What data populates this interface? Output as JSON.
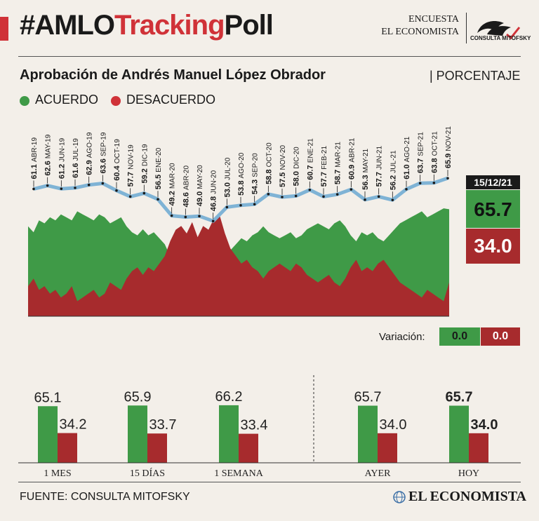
{
  "header": {
    "title_hash": "#AMLO",
    "title_red": "Tracking",
    "title_end": "Poll",
    "brand_line1": "ENCUESTA",
    "brand_line2": "EL ECONOMISTA",
    "brand_logo_text": "CONSULTA MITOFSKY"
  },
  "subtitle": {
    "main": "Aprobación de Andrés Manuel López Obrador",
    "unit": "| PORCENTAJE"
  },
  "legend": {
    "agree": "ACUERDO",
    "disagree": "DESACUERDO"
  },
  "colors": {
    "green": "#3f9a47",
    "red": "#a72b2d",
    "accent_red": "#d03238",
    "line": "#7fb3d5"
  },
  "current": {
    "date": "15/12/21",
    "agree": "65.7",
    "disagree": "34.0"
  },
  "variation": {
    "label": "Variación:",
    "agree": "0.0",
    "disagree": "0.0"
  },
  "footer": {
    "source": "FUENTE: CONSULTA MITOFSKY",
    "brand": "EL ECONOMISTA"
  },
  "chart_data": [
    {
      "type": "area",
      "title": "Aprobación de Andrés Manuel López Obrador",
      "monthly_labels": [
        {
          "month": "ABR-19",
          "value": 61.1
        },
        {
          "month": "MAY-19",
          "value": 62.6
        },
        {
          "month": "JUN-19",
          "value": 61.2
        },
        {
          "month": "JUL-19",
          "value": 61.6
        },
        {
          "month": "AGO-19",
          "value": 62.9
        },
        {
          "month": "SEP-19",
          "value": 63.6
        },
        {
          "month": "OCT-19",
          "value": 60.4
        },
        {
          "month": "NOV-19",
          "value": 57.7
        },
        {
          "month": "DIC-19",
          "value": 59.2
        },
        {
          "month": "ENE-20",
          "value": 56.5
        },
        {
          "month": "MAR-20",
          "value": 49.2
        },
        {
          "month": "ABR-20",
          "value": 48.6
        },
        {
          "month": "MAY-20",
          "value": 49.0
        },
        {
          "month": "JUN-20",
          "value": 46.8
        },
        {
          "month": "JUL-20",
          "value": 53.0
        },
        {
          "month": "AGO-20",
          "value": 53.8
        },
        {
          "month": "SEP-20",
          "value": 54.3
        },
        {
          "month": "OCT-20",
          "value": 58.8
        },
        {
          "month": "NOV-20",
          "value": 57.5
        },
        {
          "month": "DIC-20",
          "value": 58.0
        },
        {
          "month": "ENE-21",
          "value": 60.7
        },
        {
          "month": "FEB-21",
          "value": 57.7
        },
        {
          "month": "MAR-21",
          "value": 58.7
        },
        {
          "month": "ABR-21",
          "value": 60.9
        },
        {
          "month": "MAY-21",
          "value": 56.3
        },
        {
          "month": "JUN-21",
          "value": 57.7
        },
        {
          "month": "JUL-21",
          "value": 56.2
        },
        {
          "month": "AGO-21",
          "value": 61.0
        },
        {
          "month": "SEP-21",
          "value": 63.7
        },
        {
          "month": "OCT-21",
          "value": 63.8
        },
        {
          "month": "NOV-21",
          "value": 65.9
        }
      ],
      "approval_daily": [
        60,
        58,
        62,
        61,
        63,
        62,
        64,
        63,
        62,
        65,
        64,
        63,
        62,
        64,
        63,
        61,
        62,
        63,
        60,
        58,
        57,
        59,
        57,
        58,
        56,
        54,
        50,
        47,
        46,
        48,
        45,
        49,
        46,
        47,
        44,
        43,
        48,
        52,
        54,
        56,
        55,
        57,
        58,
        60,
        58,
        57,
        56,
        57,
        58,
        56,
        57,
        59,
        60,
        61,
        60,
        59,
        61,
        62,
        60,
        57,
        55,
        58,
        57,
        58,
        56,
        55,
        57,
        59,
        61,
        62,
        63,
        64,
        65,
        63,
        64,
        65,
        66,
        65.7
      ],
      "disapproval_daily": [
        33,
        35,
        32,
        33,
        31,
        32,
        30,
        31,
        33,
        29,
        30,
        31,
        32,
        30,
        31,
        34,
        33,
        32,
        35,
        37,
        38,
        36,
        38,
        37,
        39,
        41,
        45,
        48,
        49,
        47,
        50,
        46,
        49,
        48,
        51,
        52,
        47,
        43,
        41,
        39,
        40,
        38,
        37,
        35,
        37,
        38,
        39,
        38,
        37,
        39,
        38,
        36,
        35,
        34,
        35,
        36,
        34,
        33,
        35,
        38,
        40,
        37,
        38,
        37,
        39,
        40,
        38,
        36,
        34,
        33,
        32,
        31,
        30,
        32,
        31,
        30,
        29,
        34.0
      ],
      "ylim": [
        0,
        100
      ]
    },
    {
      "type": "bar",
      "categories": [
        "1 MES",
        "15 DÍAS",
        "1 SEMANA",
        "AYER",
        "HOY"
      ],
      "series": [
        {
          "name": "ACUERDO",
          "values": [
            65.1,
            65.9,
            66.2,
            65.7,
            65.7
          ]
        },
        {
          "name": "DESACUERDO",
          "values": [
            34.2,
            33.7,
            33.4,
            34.0,
            34.0
          ]
        }
      ],
      "ylim": [
        0,
        100
      ]
    }
  ]
}
